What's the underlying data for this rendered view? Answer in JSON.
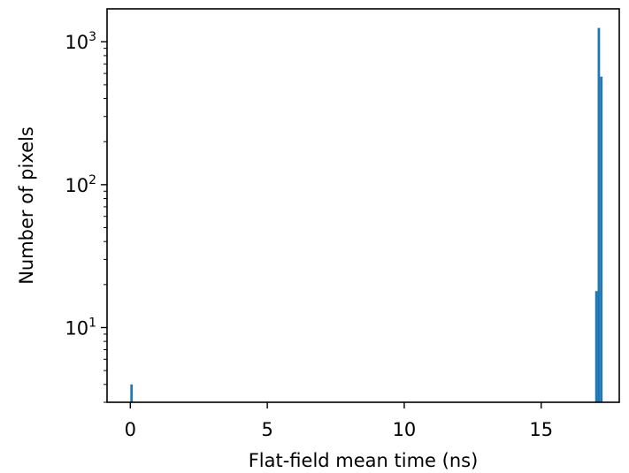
{
  "chart_data": {
    "type": "histogram",
    "title": "",
    "xlabel": "Flat-field mean time (ns)",
    "ylabel": "Number of pixels",
    "x_scale": "linear",
    "y_scale": "log",
    "xlim": [
      -0.85,
      17.85
    ],
    "ylim": [
      3,
      1700
    ],
    "grid": false,
    "legend": "none",
    "bar_color": "#1f77b4",
    "x_ticks": [
      {
        "value": 0,
        "label": "0"
      },
      {
        "value": 5,
        "label": "5"
      },
      {
        "value": 10,
        "label": "10"
      },
      {
        "value": 15,
        "label": "15"
      }
    ],
    "y_ticks": [
      {
        "value": 10,
        "base": "10",
        "exp": "1"
      },
      {
        "value": 100,
        "base": "10",
        "exp": "2"
      },
      {
        "value": 1000,
        "base": "10",
        "exp": "3"
      }
    ],
    "bins": [
      {
        "x0": 0.0,
        "x1": 0.09,
        "count": 4
      },
      {
        "x0": 16.97,
        "x1": 17.06,
        "count": 18
      },
      {
        "x0": 17.06,
        "x1": 17.15,
        "count": 1250
      },
      {
        "x0": 17.15,
        "x1": 17.24,
        "count": 570
      }
    ]
  }
}
